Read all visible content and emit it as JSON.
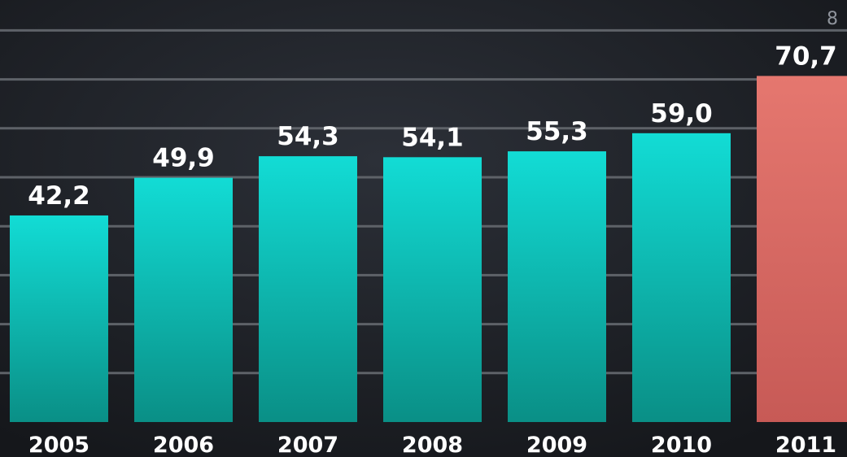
{
  "chart_data": {
    "type": "bar",
    "categories": [
      "2005",
      "2006",
      "2007",
      "2008",
      "2009",
      "2010",
      "2011"
    ],
    "values": [
      42.2,
      49.9,
      54.3,
      54.1,
      55.3,
      59.0,
      70.7
    ],
    "value_labels": [
      "42,2",
      "49,9",
      "54,3",
      "54,1",
      "55,3",
      "59,0",
      "70,7"
    ],
    "ylim": [
      0,
      80
    ],
    "y_tick_step": 10,
    "visible_max_tick_label": "8",
    "grid": true,
    "title": "",
    "xlabel": "",
    "ylabel": "",
    "colors": {
      "bar_top": "#12dcd5",
      "bar_bottom": "#0a8f86",
      "highlight_top": "#e5776f",
      "highlight_bottom": "#c75a56",
      "grid": "#5e6268",
      "background": "#1b1d22"
    },
    "highlight_index": 6
  }
}
